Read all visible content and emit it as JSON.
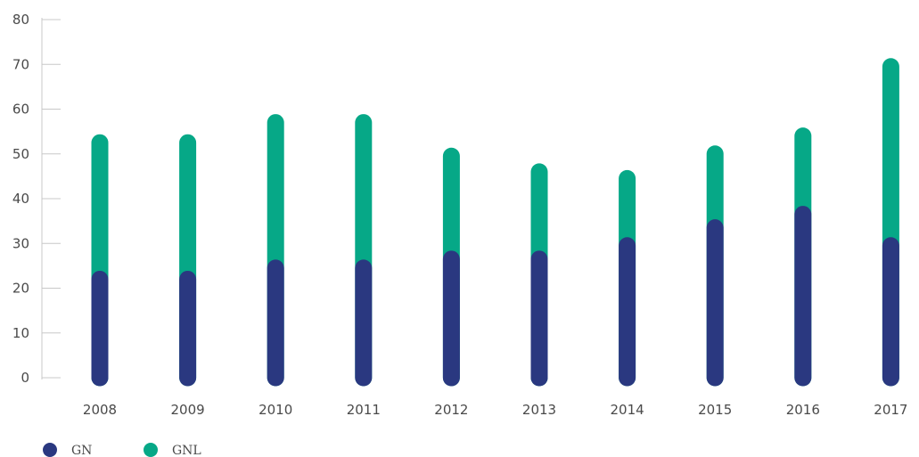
{
  "chart_data": {
    "type": "bar",
    "stacked": true,
    "categories": [
      "2008",
      "2009",
      "2010",
      "2011",
      "2012",
      "2013",
      "2014",
      "2015",
      "2016",
      "2017"
    ],
    "series": [
      {
        "name": "GN",
        "color": "#2a3880",
        "values": [
          22,
          22,
          24.5,
          24.5,
          26.5,
          26.5,
          29.5,
          33.5,
          36.5,
          29.5
        ]
      },
      {
        "name": "GNL",
        "color": "#06a887",
        "values": [
          30.5,
          30.5,
          32.5,
          32.5,
          23,
          19.5,
          15,
          16.5,
          17.5,
          40
        ]
      }
    ],
    "ylim": [
      0,
      80
    ],
    "yticks": [
      "0",
      "10",
      "20",
      "30",
      "40",
      "50",
      "60",
      "70",
      "80"
    ],
    "grid": false,
    "legend": "bottom-left",
    "title": "",
    "xlabel": "",
    "ylabel": ""
  }
}
